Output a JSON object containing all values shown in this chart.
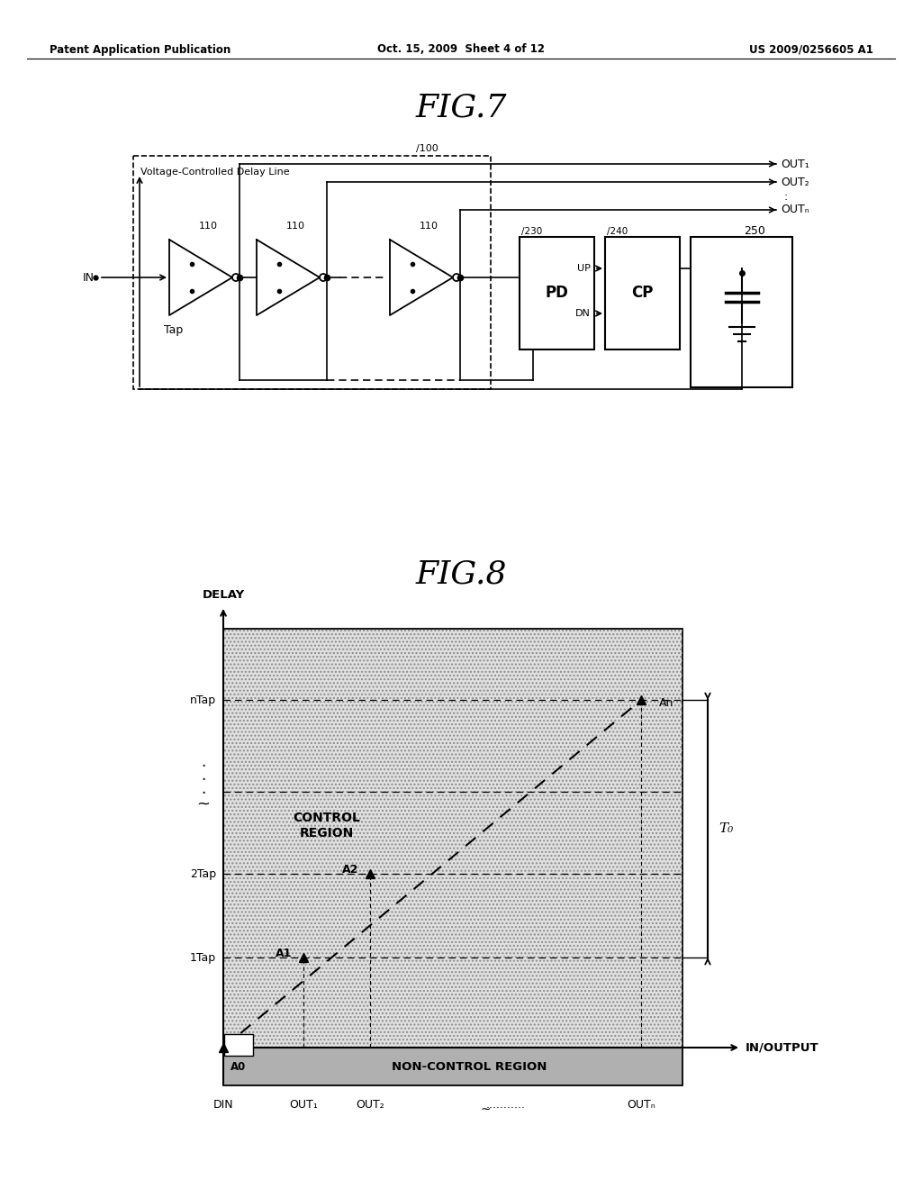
{
  "bg_color": "#ffffff",
  "header_left": "Patent Application Publication",
  "header_center": "Oct. 15, 2009  Sheet 4 of 12",
  "header_right": "US 2009/0256605 A1",
  "fig7_title": "FIG.7",
  "fig8_title": "FIG.8",
  "fig7": {
    "vcdl_label": "Voltage-Controlled Delay Line",
    "vcdl_number": "100",
    "tap_label": "Tap",
    "buf_numbers": [
      "110",
      "110",
      "110"
    ],
    "pd_label": "PD",
    "pd_number": "230",
    "cp_label": "CP",
    "cp_number": "240",
    "cap_number": "250",
    "in_label": "IN",
    "out_labels": [
      "OUT₁",
      "OUT₂",
      "OUTₙ"
    ],
    "pd_up": "UP",
    "pd_dn": "DN"
  },
  "fig8": {
    "delay_label": "DELAY",
    "x_label": "IN/OUTPUT",
    "control_region": "CONTROL\nREGION",
    "non_control_region": "NON-CONTROL REGION",
    "y_labels": [
      "1Tap",
      "2Tap",
      "nTap"
    ],
    "x_labels": [
      "DIN",
      "OUT₁",
      "OUT₂",
      "...........",
      "OUTₙ"
    ],
    "points": [
      "A0",
      "A1",
      "A2",
      "An"
    ],
    "T0_label": "T₀"
  }
}
